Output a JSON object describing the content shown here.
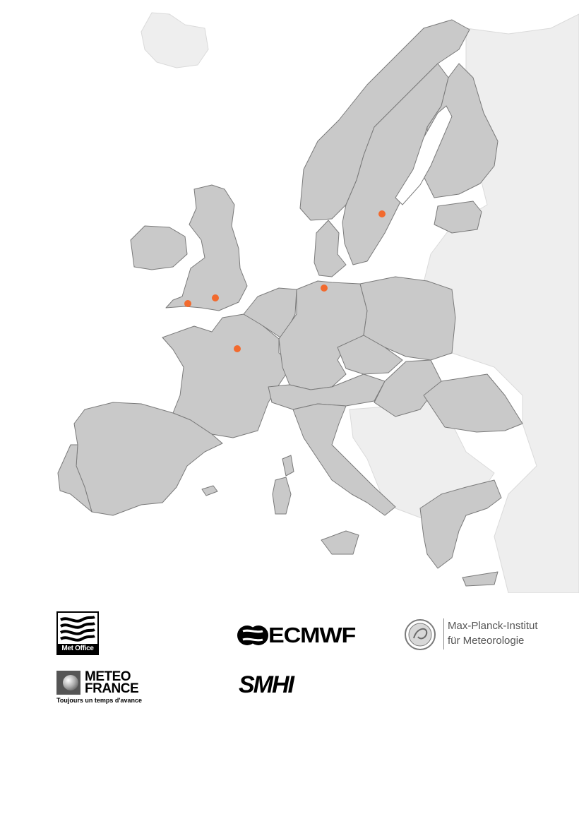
{
  "map": {
    "land_color": "#c9c9c9",
    "outside_color": "#eeeeee",
    "border_color": "#7a7a7a",
    "marker_color": "#f26a2e",
    "markers": [
      {
        "id": "exeter"
      },
      {
        "id": "reading"
      },
      {
        "id": "toulouse-paris-area"
      },
      {
        "id": "hamburg"
      },
      {
        "id": "norrkoping"
      }
    ]
  },
  "logos": {
    "met_office": {
      "name": "Met Office"
    },
    "meteo_france": {
      "line1": "METEO",
      "line2": "FRANCE",
      "tagline": "Toujours un temps d'avance"
    },
    "ecmwf": {
      "name": "ECMWF"
    },
    "smhi": {
      "name": "SMHI"
    },
    "max_planck": {
      "line1": "Max-Planck-Institut",
      "line2": "für Meteorologie"
    }
  }
}
